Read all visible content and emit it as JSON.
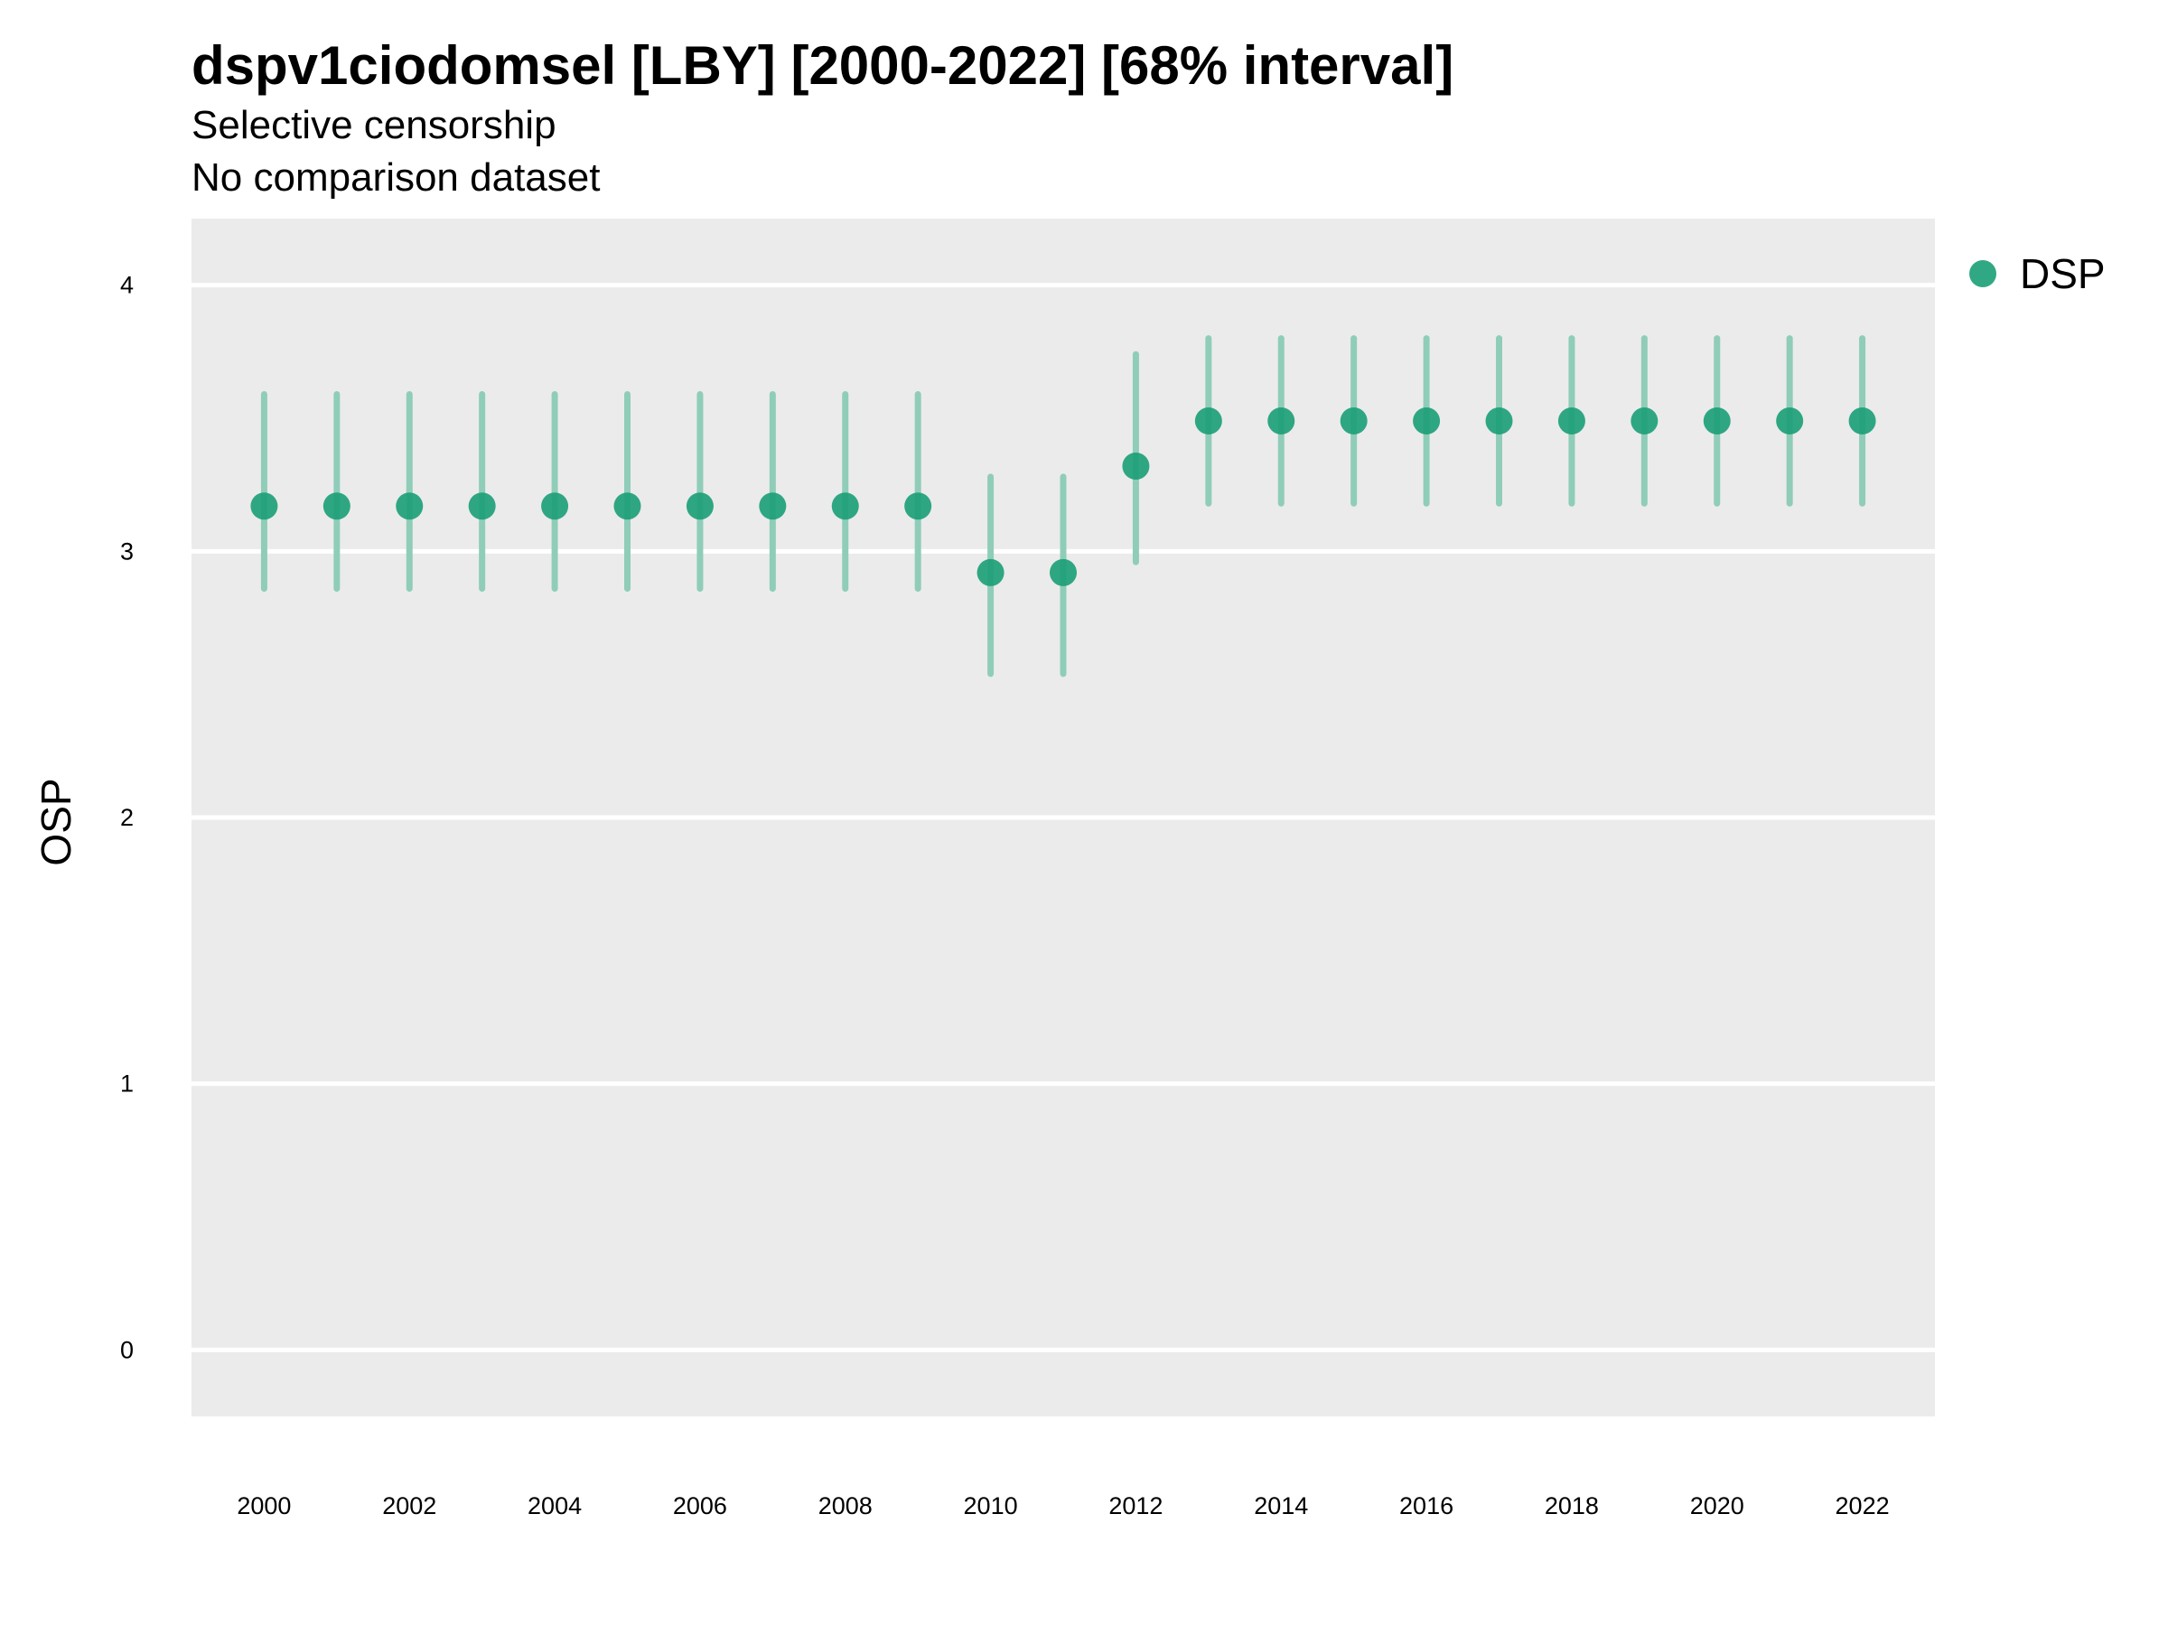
{
  "chart_data": {
    "type": "scatter",
    "title": "dspv1ciodomsel [LBY] [2000-2022] [68% interval]",
    "subtitle": [
      "Selective censorship",
      "No comparison dataset"
    ],
    "xlabel": "",
    "ylabel": "OSP",
    "xlim": [
      1999,
      2023
    ],
    "ylim": [
      -0.25,
      4.25
    ],
    "yticks": [
      0,
      1,
      2,
      3,
      4
    ],
    "xticks": [
      2000,
      2002,
      2004,
      2006,
      2008,
      2010,
      2012,
      2014,
      2016,
      2018,
      2020,
      2022
    ],
    "grid": true,
    "legend_position": "right",
    "colors": {
      "point": "#1b9e77",
      "errorbar": "#8fcdb9",
      "panel": "#ebebeb",
      "gridline": "#ffffff"
    },
    "series": [
      {
        "name": "DSP",
        "x": [
          2000,
          2001,
          2002,
          2003,
          2004,
          2005,
          2006,
          2007,
          2008,
          2009,
          2010,
          2011,
          2012,
          2013,
          2014,
          2015,
          2016,
          2017,
          2018,
          2019,
          2020,
          2021,
          2022
        ],
        "y": [
          3.17,
          3.17,
          3.17,
          3.17,
          3.17,
          3.17,
          3.17,
          3.17,
          3.17,
          3.17,
          2.92,
          2.92,
          3.32,
          3.49,
          3.49,
          3.49,
          3.49,
          3.49,
          3.49,
          3.49,
          3.49,
          3.49,
          3.49
        ],
        "lower": [
          2.86,
          2.86,
          2.86,
          2.86,
          2.86,
          2.86,
          2.86,
          2.86,
          2.86,
          2.86,
          2.54,
          2.54,
          2.96,
          3.18,
          3.18,
          3.18,
          3.18,
          3.18,
          3.18,
          3.18,
          3.18,
          3.18,
          3.18
        ],
        "upper": [
          3.59,
          3.59,
          3.59,
          3.59,
          3.59,
          3.59,
          3.59,
          3.59,
          3.59,
          3.59,
          3.28,
          3.28,
          3.74,
          3.8,
          3.8,
          3.8,
          3.8,
          3.8,
          3.8,
          3.8,
          3.8,
          3.8,
          3.8
        ]
      }
    ]
  }
}
